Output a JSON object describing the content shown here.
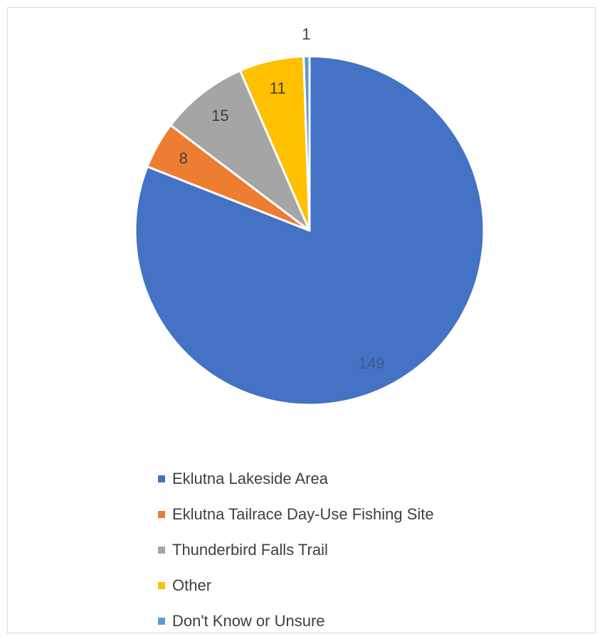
{
  "chart_data": {
    "type": "pie",
    "title": "",
    "legend_position": "bottom",
    "slices": [
      {
        "label": "Eklutna Lakeside Area",
        "value": 149,
        "color": "#4472C4",
        "value_label": "149"
      },
      {
        "label": "Eklutna Tailrace Day-Use Fishing Site",
        "value": 8,
        "color": "#ED7D31",
        "value_label": "8"
      },
      {
        "label": "Thunderbird Falls Trail",
        "value": 15,
        "color": "#A5A5A5",
        "value_label": "15"
      },
      {
        "label": "Other",
        "value": 11,
        "color": "#FFC000",
        "value_label": "11"
      },
      {
        "label": "Don't Know or Unsure",
        "value": 1,
        "color": "#5B9BD5",
        "value_label": "1"
      }
    ]
  }
}
